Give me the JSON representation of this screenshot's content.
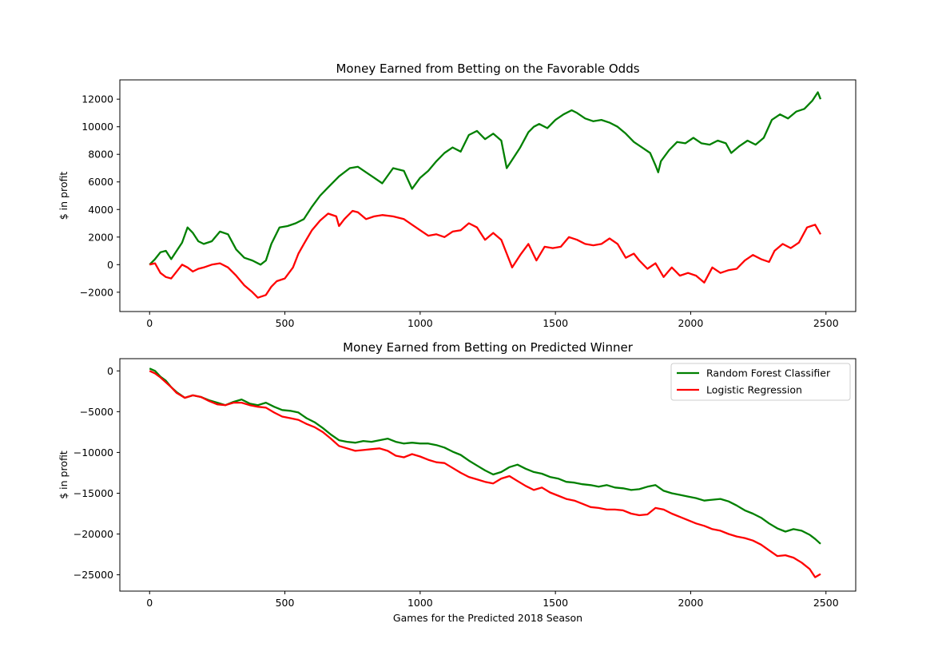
{
  "chart_data": [
    {
      "type": "line",
      "title": "Money Earned from Betting on the Favorable Odds",
      "xlabel": "",
      "ylabel": "$ in profit",
      "xlim": [
        -110,
        2610
      ],
      "ylim": [
        -3400,
        13400
      ],
      "xticks": [
        0,
        500,
        1000,
        1500,
        2000,
        2500
      ],
      "yticks": [
        -2000,
        0,
        2000,
        4000,
        6000,
        8000,
        10000,
        12000
      ],
      "grid": false,
      "legend": "none",
      "series": [
        {
          "color": "#008000",
          "x": [
            0,
            20,
            40,
            60,
            80,
            100,
            120,
            140,
            160,
            180,
            200,
            230,
            260,
            290,
            320,
            350,
            380,
            410,
            430,
            450,
            480,
            510,
            540,
            570,
            600,
            630,
            660,
            700,
            740,
            770,
            800,
            830,
            860,
            900,
            940,
            970,
            1000,
            1030,
            1060,
            1090,
            1120,
            1150,
            1180,
            1210,
            1240,
            1270,
            1300,
            1320,
            1340,
            1370,
            1400,
            1420,
            1440,
            1470,
            1500,
            1530,
            1560,
            1580,
            1610,
            1640,
            1670,
            1700,
            1730,
            1760,
            1790,
            1820,
            1850,
            1870,
            1880,
            1890,
            1920,
            1950,
            1980,
            2010,
            2040,
            2070,
            2100,
            2130,
            2150,
            2180,
            2210,
            2240,
            2270,
            2300,
            2330,
            2360,
            2390,
            2420,
            2450,
            2470,
            2480
          ],
          "y": [
            0,
            400,
            900,
            1000,
            400,
            1000,
            1600,
            2700,
            2300,
            1700,
            1500,
            1700,
            2400,
            2200,
            1100,
            500,
            300,
            0,
            300,
            1500,
            2700,
            2800,
            3000,
            3300,
            4200,
            5000,
            5600,
            6400,
            7000,
            7100,
            6700,
            6300,
            5900,
            7000,
            6800,
            5500,
            6300,
            6800,
            7500,
            8100,
            8500,
            8200,
            9400,
            9700,
            9100,
            9500,
            9000,
            7000,
            7600,
            8500,
            9600,
            10000,
            10200,
            9900,
            10500,
            10900,
            11200,
            11000,
            10600,
            10400,
            10500,
            10300,
            10000,
            9500,
            8900,
            8500,
            8100,
            7200,
            6700,
            7500,
            8300,
            8900,
            8800,
            9200,
            8800,
            8700,
            9000,
            8800,
            8100,
            8600,
            9000,
            8700,
            9200,
            10500,
            10900,
            10600,
            11100,
            11300,
            11900,
            12500,
            12000
          ]
        },
        {
          "color": "#ff0000",
          "x": [
            0,
            20,
            40,
            60,
            80,
            100,
            120,
            140,
            160,
            180,
            200,
            230,
            260,
            290,
            320,
            350,
            380,
            400,
            430,
            450,
            470,
            500,
            530,
            550,
            570,
            600,
            630,
            660,
            690,
            700,
            720,
            750,
            770,
            800,
            830,
            860,
            900,
            940,
            970,
            1000,
            1030,
            1060,
            1090,
            1120,
            1150,
            1180,
            1210,
            1240,
            1270,
            1300,
            1320,
            1340,
            1370,
            1400,
            1430,
            1460,
            1490,
            1520,
            1550,
            1580,
            1610,
            1640,
            1670,
            1700,
            1730,
            1760,
            1790,
            1810,
            1840,
            1870,
            1900,
            1930,
            1960,
            1990,
            2020,
            2050,
            2080,
            2110,
            2140,
            2170,
            2200,
            2230,
            2260,
            2290,
            2310,
            2340,
            2370,
            2400,
            2430,
            2460,
            2480
          ],
          "y": [
            0,
            100,
            -600,
            -900,
            -1000,
            -500,
            0,
            -200,
            -500,
            -300,
            -200,
            0,
            100,
            -200,
            -800,
            -1500,
            -2000,
            -2400,
            -2200,
            -1600,
            -1200,
            -1000,
            -200,
            800,
            1500,
            2500,
            3200,
            3700,
            3500,
            2800,
            3300,
            3900,
            3800,
            3300,
            3500,
            3600,
            3500,
            3300,
            2900,
            2500,
            2100,
            2200,
            2000,
            2400,
            2500,
            3000,
            2700,
            1800,
            2300,
            1800,
            800,
            -200,
            700,
            1500,
            300,
            1300,
            1200,
            1300,
            2000,
            1800,
            1500,
            1400,
            1500,
            1900,
            1500,
            500,
            800,
            300,
            -300,
            100,
            -900,
            -200,
            -800,
            -600,
            -800,
            -1300,
            -200,
            -600,
            -400,
            -300,
            300,
            700,
            400,
            200,
            1000,
            1500,
            1200,
            1600,
            2700,
            2900,
            2200
          ]
        }
      ]
    },
    {
      "type": "line",
      "title": "Money Earned from Betting on Predicted Winner",
      "xlabel": "Games for the Predicted 2018 Season",
      "ylabel": "$ in profit",
      "xlim": [
        -110,
        2610
      ],
      "ylim": [
        -27000,
        1500
      ],
      "xticks": [
        0,
        500,
        1000,
        1500,
        2000,
        2500
      ],
      "yticks": [
        0,
        -5000,
        -10000,
        -15000,
        -20000,
        -25000
      ],
      "grid": false,
      "legend": "top-right",
      "series": [
        {
          "name": "Random Forest Classifier",
          "color": "#008000",
          "x": [
            0,
            20,
            40,
            60,
            80,
            100,
            130,
            160,
            190,
            220,
            250,
            280,
            310,
            340,
            370,
            400,
            430,
            460,
            490,
            520,
            550,
            580,
            610,
            640,
            670,
            700,
            730,
            760,
            790,
            820,
            850,
            880,
            910,
            940,
            970,
            1000,
            1030,
            1060,
            1090,
            1120,
            1150,
            1180,
            1210,
            1240,
            1270,
            1300,
            1330,
            1360,
            1390,
            1420,
            1450,
            1480,
            1510,
            1540,
            1570,
            1600,
            1630,
            1660,
            1690,
            1720,
            1750,
            1780,
            1810,
            1840,
            1870,
            1900,
            1930,
            1960,
            1990,
            2020,
            2050,
            2080,
            2110,
            2140,
            2170,
            2200,
            2230,
            2260,
            2290,
            2320,
            2350,
            2380,
            2410,
            2440,
            2460,
            2480
          ],
          "y": [
            300,
            0,
            -700,
            -1200,
            -2000,
            -2600,
            -3300,
            -3000,
            -3200,
            -3600,
            -3900,
            -4200,
            -3800,
            -3500,
            -4000,
            -4200,
            -3900,
            -4400,
            -4800,
            -4900,
            -5100,
            -5800,
            -6300,
            -7000,
            -7800,
            -8500,
            -8700,
            -8800,
            -8600,
            -8700,
            -8500,
            -8300,
            -8700,
            -8900,
            -8800,
            -8900,
            -8900,
            -9100,
            -9400,
            -9900,
            -10300,
            -11000,
            -11600,
            -12200,
            -12700,
            -12400,
            -11800,
            -11500,
            -12000,
            -12400,
            -12600,
            -13000,
            -13200,
            -13600,
            -13700,
            -13900,
            -14000,
            -14200,
            -14000,
            -14300,
            -14400,
            -14600,
            -14500,
            -14200,
            -14000,
            -14700,
            -15000,
            -15200,
            -15400,
            -15600,
            -15900,
            -15800,
            -15700,
            -16000,
            -16500,
            -17100,
            -17500,
            -18000,
            -18700,
            -19300,
            -19700,
            -19400,
            -19600,
            -20100,
            -20600,
            -21200
          ]
        },
        {
          "name": "Logistic Regression",
          "color": "#ff0000",
          "x": [
            0,
            20,
            40,
            60,
            80,
            100,
            130,
            160,
            190,
            220,
            250,
            280,
            310,
            340,
            370,
            400,
            430,
            460,
            490,
            520,
            550,
            580,
            610,
            640,
            670,
            700,
            730,
            760,
            790,
            820,
            850,
            880,
            910,
            940,
            970,
            1000,
            1030,
            1060,
            1090,
            1120,
            1150,
            1180,
            1210,
            1240,
            1270,
            1300,
            1330,
            1360,
            1390,
            1420,
            1450,
            1480,
            1510,
            1540,
            1570,
            1600,
            1630,
            1660,
            1690,
            1720,
            1750,
            1780,
            1810,
            1840,
            1870,
            1900,
            1930,
            1960,
            1990,
            2020,
            2050,
            2080,
            2110,
            2140,
            2170,
            2200,
            2230,
            2260,
            2290,
            2320,
            2350,
            2380,
            2410,
            2440,
            2460,
            2480
          ],
          "y": [
            0,
            -300,
            -800,
            -1400,
            -2000,
            -2700,
            -3300,
            -3000,
            -3200,
            -3700,
            -4100,
            -4200,
            -3900,
            -3900,
            -4200,
            -4400,
            -4500,
            -5100,
            -5600,
            -5800,
            -6000,
            -6500,
            -6900,
            -7500,
            -8300,
            -9200,
            -9500,
            -9800,
            -9700,
            -9600,
            -9500,
            -9800,
            -10400,
            -10600,
            -10200,
            -10500,
            -10900,
            -11200,
            -11300,
            -11900,
            -12500,
            -13000,
            -13300,
            -13600,
            -13800,
            -13200,
            -12900,
            -13500,
            -14100,
            -14600,
            -14300,
            -14900,
            -15300,
            -15700,
            -15900,
            -16300,
            -16700,
            -16800,
            -17000,
            -17000,
            -17100,
            -17500,
            -17700,
            -17600,
            -16800,
            -17000,
            -17500,
            -17900,
            -18300,
            -18700,
            -19000,
            -19400,
            -19600,
            -20000,
            -20300,
            -20500,
            -20800,
            -21300,
            -22000,
            -22700,
            -22600,
            -22900,
            -23500,
            -24300,
            -25300,
            -24900
          ]
        }
      ]
    }
  ]
}
